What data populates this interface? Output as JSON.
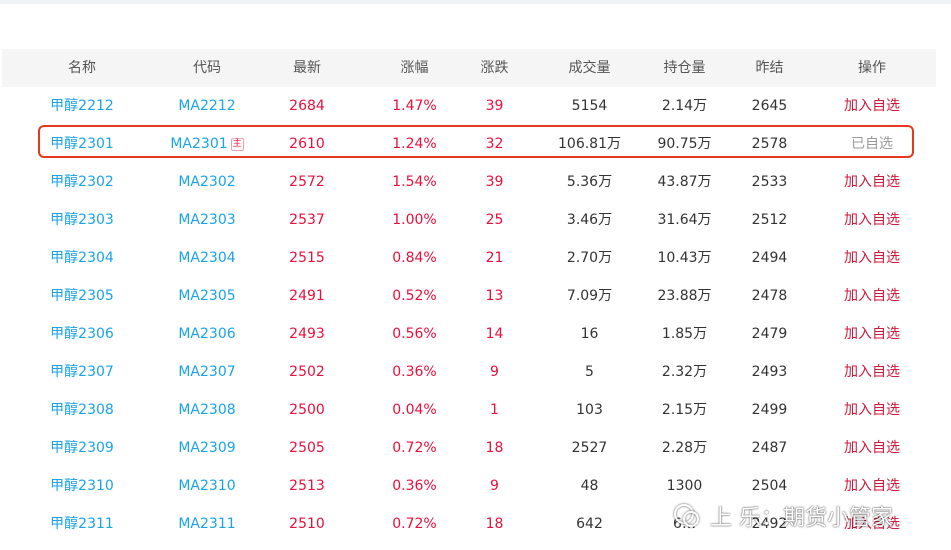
{
  "columns": [
    "名称",
    "代码",
    "最新",
    "涨幅",
    "涨跌",
    "成交量",
    "持仓量",
    "昨结",
    "操作"
  ],
  "rows": [
    {
      "name": "甲醇2212",
      "code": "MA2212",
      "latest": "2684",
      "change_pct": "1.47%",
      "change": "39",
      "volume": "5154",
      "open_interest": "2.14万",
      "prev_settle": "2645",
      "action": "加入自选"
    },
    {
      "name": "甲醇2301",
      "code": "MA2301",
      "main_badge": "主",
      "latest": "2610",
      "change_pct": "1.24%",
      "change": "32",
      "volume": "106.81万",
      "open_interest": "90.75万",
      "prev_settle": "2578",
      "action": "已自选"
    },
    {
      "name": "甲醇2302",
      "code": "MA2302",
      "latest": "2572",
      "change_pct": "1.54%",
      "change": "39",
      "volume": "5.36万",
      "open_interest": "43.87万",
      "prev_settle": "2533",
      "action": "加入自选"
    },
    {
      "name": "甲醇2303",
      "code": "MA2303",
      "latest": "2537",
      "change_pct": "1.00%",
      "change": "25",
      "volume": "3.46万",
      "open_interest": "31.64万",
      "prev_settle": "2512",
      "action": "加入自选"
    },
    {
      "name": "甲醇2304",
      "code": "MA2304",
      "latest": "2515",
      "change_pct": "0.84%",
      "change": "21",
      "volume": "2.70万",
      "open_interest": "10.43万",
      "prev_settle": "2494",
      "action": "加入自选"
    },
    {
      "name": "甲醇2305",
      "code": "MA2305",
      "latest": "2491",
      "change_pct": "0.52%",
      "change": "13",
      "volume": "7.09万",
      "open_interest": "23.88万",
      "prev_settle": "2478",
      "action": "加入自选"
    },
    {
      "name": "甲醇2306",
      "code": "MA2306",
      "latest": "2493",
      "change_pct": "0.56%",
      "change": "14",
      "volume": "16",
      "open_interest": "1.85万",
      "prev_settle": "2479",
      "action": "加入自选"
    },
    {
      "name": "甲醇2307",
      "code": "MA2307",
      "latest": "2502",
      "change_pct": "0.36%",
      "change": "9",
      "volume": "5",
      "open_interest": "2.32万",
      "prev_settle": "2493",
      "action": "加入自选"
    },
    {
      "name": "甲醇2308",
      "code": "MA2308",
      "latest": "2500",
      "change_pct": "0.04%",
      "change": "1",
      "volume": "103",
      "open_interest": "2.15万",
      "prev_settle": "2499",
      "action": "加入自选"
    },
    {
      "name": "甲醇2309",
      "code": "MA2309",
      "latest": "2505",
      "change_pct": "0.72%",
      "change": "18",
      "volume": "2527",
      "open_interest": "2.28万",
      "prev_settle": "2487",
      "action": "加入自选"
    },
    {
      "name": "甲醇2310",
      "code": "MA2310",
      "latest": "2513",
      "change_pct": "0.36%",
      "change": "9",
      "volume": "48",
      "open_interest": "1300",
      "prev_settle": "2504",
      "action": "加入自选"
    },
    {
      "name": "甲醇2311",
      "code": "MA2311",
      "latest": "2510",
      "change_pct": "0.72%",
      "change": "18",
      "volume": "642",
      "open_interest": "6…",
      "prev_settle": "2492",
      "action": "加入自选"
    }
  ],
  "watermark": {
    "text": "上 乐：期货小管家"
  },
  "colors": {
    "link_blue": "#1aa3e8",
    "rise_red": "#e8103c",
    "action_red": "#d0193b",
    "highlight_border": "#e8391f",
    "added_gray": "#9a9a9a"
  }
}
